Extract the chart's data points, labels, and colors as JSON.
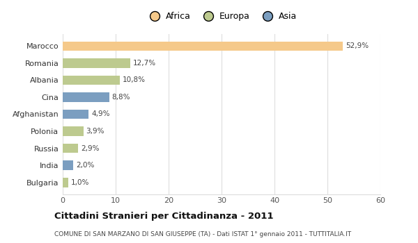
{
  "countries": [
    "Bulgaria",
    "India",
    "Russia",
    "Polonia",
    "Afghanistan",
    "Cina",
    "Albania",
    "Romania",
    "Marocco"
  ],
  "values": [
    1.0,
    2.0,
    2.9,
    3.9,
    4.9,
    8.8,
    10.8,
    12.7,
    52.9
  ],
  "continents": [
    "Europa",
    "Asia",
    "Europa",
    "Europa",
    "Asia",
    "Asia",
    "Europa",
    "Europa",
    "Africa"
  ],
  "bar_colors": {
    "Africa": "#F5C98A",
    "Europa": "#BDCA8F",
    "Asia": "#7B9EC0"
  },
  "label_texts": [
    "1,0%",
    "2,0%",
    "2,9%",
    "3,9%",
    "4,9%",
    "8,8%",
    "10,8%",
    "12,7%",
    "52,9%"
  ],
  "title": "Cittadini Stranieri per Cittadinanza - 2011",
  "subtitle": "COMUNE DI SAN MARZANO DI SAN GIUSEPPE (TA) - Dati ISTAT 1° gennaio 2011 - TUTTITALIA.IT",
  "xlim": [
    0,
    60
  ],
  "xticks": [
    0,
    10,
    20,
    30,
    40,
    50,
    60
  ],
  "background_color": "#ffffff",
  "grid_color": "#dddddd",
  "legend_labels": [
    "Africa",
    "Europa",
    "Asia"
  ],
  "legend_colors": [
    "#F5C98A",
    "#BDCA8F",
    "#7B9EC0"
  ]
}
